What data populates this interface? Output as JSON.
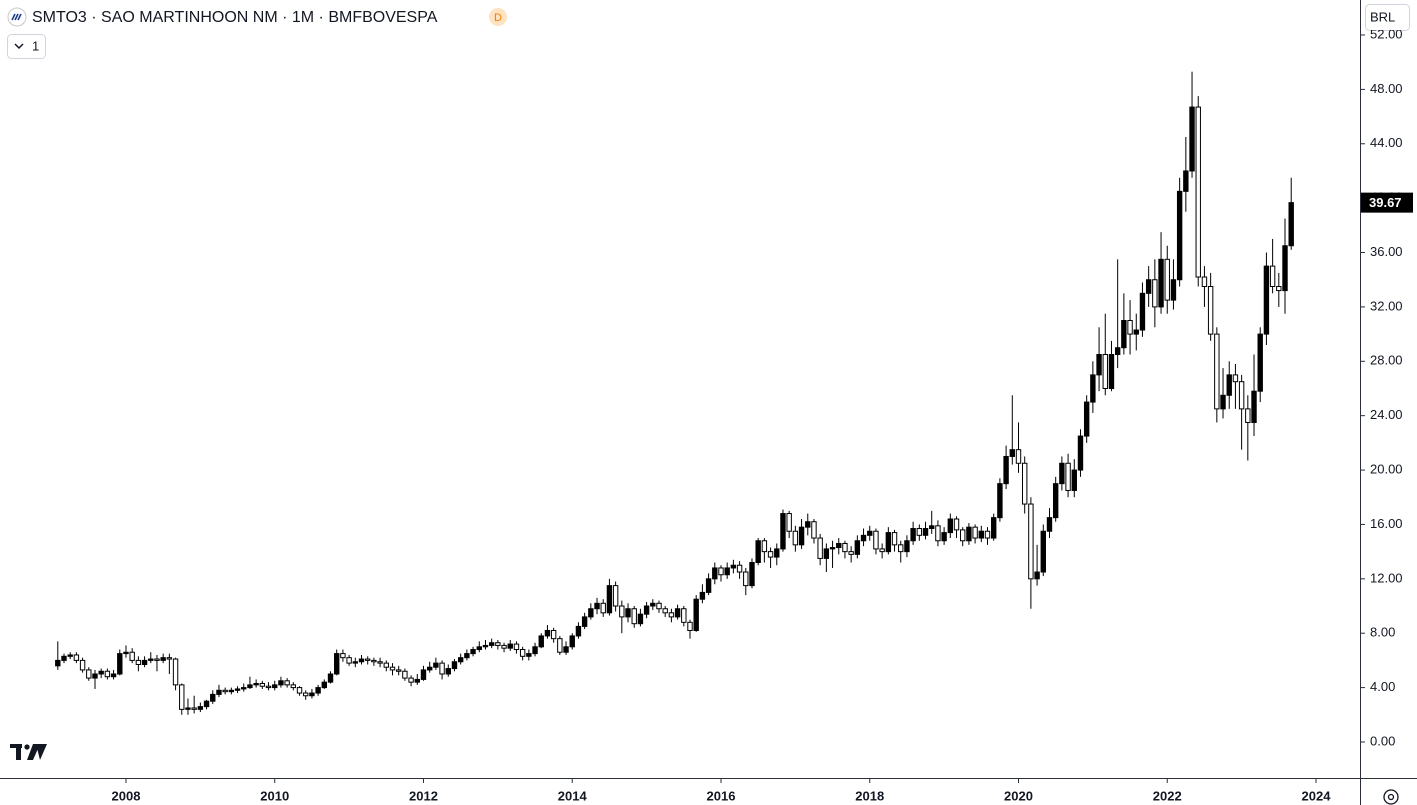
{
  "header": {
    "title": "SMTO3 · SAO MARTINHOON NM · 1M · BMFBOVESPA",
    "badge": "D",
    "interval_menu": "1",
    "currency": "BRL"
  },
  "chart_data": {
    "type": "candlestick",
    "categories": [
      null,
      null,
      null,
      null,
      null,
      null,
      null,
      null,
      null,
      null,
      null,
      "2008",
      null,
      null,
      null,
      null,
      null,
      null,
      null,
      null,
      null,
      null,
      null,
      null,
      null,
      null,
      null,
      null,
      null,
      null,
      null,
      null,
      null,
      null,
      null,
      "2010",
      null,
      null,
      null,
      null,
      null,
      null,
      null,
      null,
      null,
      null,
      null,
      null,
      null,
      null,
      null,
      null,
      null,
      null,
      null,
      null,
      null,
      null,
      null,
      "2012",
      null,
      null,
      null,
      null,
      null,
      null,
      null,
      null,
      null,
      null,
      null,
      null,
      null,
      null,
      null,
      null,
      null,
      null,
      null,
      null,
      null,
      null,
      null,
      "2014",
      null,
      null,
      null,
      null,
      null,
      null,
      null,
      null,
      null,
      null,
      null,
      null,
      null,
      null,
      null,
      null,
      null,
      null,
      null,
      null,
      null,
      null,
      null,
      "2016",
      null,
      null,
      null,
      null,
      null,
      null,
      null,
      null,
      null,
      null,
      null,
      null,
      null,
      null,
      null,
      null,
      null,
      null,
      null,
      null,
      null,
      null,
      null,
      "2018",
      null,
      null,
      null,
      null,
      null,
      null,
      null,
      null,
      null,
      null,
      null,
      null,
      null,
      null,
      null,
      null,
      null,
      null,
      null,
      null,
      null,
      null,
      null,
      "2020",
      null,
      null,
      null,
      null,
      null,
      null,
      null,
      null,
      null,
      null,
      null,
      null,
      null,
      null,
      null,
      null,
      null,
      null,
      null,
      null,
      null,
      null,
      null,
      "2022",
      null,
      null,
      null,
      null,
      null,
      null,
      null,
      null,
      null,
      null,
      null,
      null,
      null,
      null,
      null,
      null,
      null,
      null,
      null,
      null,
      null,
      null,
      null,
      "2024"
    ],
    "open": [
      5.6,
      6.0,
      6.3,
      6.4,
      6.0,
      5.3,
      4.7,
      5.0,
      5.2,
      4.8,
      5.0,
      6.5,
      6.6,
      6.0,
      5.7,
      6.0,
      6.1,
      6.0,
      6.2,
      6.1,
      4.2,
      2.4,
      2.5,
      2.4,
      2.6,
      3.0,
      3.5,
      3.8,
      3.7,
      3.8,
      3.9,
      4.0,
      4.2,
      4.3,
      4.1,
      4.0,
      4.2,
      4.5,
      4.2,
      4.0,
      3.6,
      3.4,
      3.6,
      4.0,
      4.4,
      5.0,
      6.5,
      6.2,
      5.8,
      5.9,
      6.1,
      6.0,
      5.9,
      5.8,
      5.5,
      5.3,
      5.2,
      4.7,
      4.4,
      4.6,
      5.3,
      5.5,
      5.8,
      5.0,
      5.4,
      5.9,
      6.2,
      6.5,
      6.8,
      7.0,
      7.1,
      7.3,
      7.1,
      6.9,
      7.2,
      6.8,
      6.3,
      6.5,
      7.0,
      7.8,
      8.2,
      7.6,
      6.6,
      7.0,
      7.8,
      8.5,
      9.2,
      9.8,
      10.2,
      9.5,
      11.5,
      10.0,
      9.2,
      9.8,
      8.7,
      9.4,
      10.0,
      10.2,
      9.8,
      9.5,
      9.2,
      9.8,
      8.8,
      8.2,
      10.5,
      11.0,
      12.0,
      12.8,
      12.3,
      12.8,
      13.0,
      12.5,
      11.5,
      13.2,
      14.8,
      14.0,
      13.6,
      14.2,
      16.8,
      15.5,
      14.5,
      15.8,
      16.2,
      15.0,
      13.5,
      14.2,
      14.3,
      14.6,
      14.0,
      13.8,
      14.8,
      15.2,
      15.5,
      14.2,
      14.0,
      15.4,
      14.5,
      14.0,
      14.8,
      15.7,
      15.2,
      15.7,
      15.9,
      14.8,
      15.4,
      16.4,
      15.6,
      14.8,
      15.8,
      15.0,
      15.5,
      15.0,
      16.5,
      19.0,
      21.0,
      21.5,
      20.5,
      17.5,
      12.0,
      12.5,
      15.5,
      16.5,
      19.0,
      20.5,
      18.5,
      20.0,
      22.5,
      25.0,
      27.0,
      28.5,
      26.0,
      28.5,
      29.0,
      31.0,
      30.0,
      30.3,
      33.0,
      34.0,
      32.0,
      35.5,
      32.5,
      34.0,
      40.5,
      42.0,
      46.7,
      34.2,
      33.5,
      30.0,
      24.5,
      25.5,
      27.0,
      26.5,
      24.5,
      23.5,
      25.8,
      30.0,
      35.0,
      33.5,
      33.2,
      36.5,
      null,
      null,
      null,
      null
    ],
    "high": [
      7.4,
      6.5,
      6.6,
      6.6,
      6.2,
      5.5,
      5.3,
      5.4,
      5.4,
      5.3,
      6.8,
      7.1,
      6.9,
      6.3,
      6.3,
      6.6,
      6.4,
      6.5,
      6.5,
      6.2,
      4.3,
      3.2,
      3.4,
      2.9,
      3.1,
      3.8,
      4.2,
      4.0,
      4.0,
      4.1,
      4.3,
      4.8,
      4.6,
      4.5,
      4.4,
      4.5,
      4.8,
      4.7,
      4.4,
      4.1,
      3.8,
      3.9,
      4.2,
      4.6,
      5.2,
      6.8,
      6.8,
      6.4,
      6.2,
      6.4,
      6.3,
      6.2,
      6.2,
      6.0,
      5.8,
      5.6,
      5.4,
      4.9,
      5.0,
      5.6,
      5.9,
      6.2,
      6.0,
      5.7,
      6.1,
      6.5,
      6.8,
      7.0,
      7.4,
      7.5,
      7.6,
      7.5,
      7.3,
      7.5,
      7.4,
      7.0,
      6.8,
      7.3,
      8.0,
      8.6,
      8.4,
      7.8,
      7.4,
      8.0,
      8.8,
      9.5,
      10.2,
      10.6,
      10.5,
      12.0,
      11.8,
      10.4,
      10.2,
      10.0,
      9.8,
      10.3,
      10.5,
      10.4,
      10.0,
      9.8,
      10.1,
      10.0,
      9.0,
      10.8,
      11.6,
      12.4,
      13.2,
      13.0,
      13.2,
      13.4,
      13.3,
      12.8,
      13.5,
      15.0,
      15.0,
      14.3,
      14.6,
      17.1,
      17.0,
      15.9,
      16.4,
      16.8,
      16.4,
      15.3,
      14.6,
      14.8,
      15.0,
      14.8,
      14.4,
      15.2,
      15.7,
      15.9,
      15.7,
      14.6,
      15.8,
      15.6,
      14.8,
      15.2,
      16.2,
      16.0,
      16.2,
      17.0,
      16.3,
      15.8,
      16.8,
      16.6,
      15.8,
      16.1,
      16.0,
      15.9,
      15.8,
      16.8,
      19.4,
      21.8,
      25.5,
      23.5,
      21.0,
      18.0,
      14.5,
      16.0,
      17.2,
      19.5,
      21.0,
      21.2,
      20.8,
      23.0,
      25.5,
      28.0,
      30.5,
      31.5,
      29.5,
      35.5,
      33.0,
      32.5,
      31.5,
      33.8,
      35.0,
      35.5,
      37.5,
      36.5,
      35.5,
      41.5,
      44.5,
      49.3,
      47.5,
      35.0,
      34.5,
      30.5,
      27.5,
      28.0,
      27.8,
      27.0,
      25.5,
      28.5,
      30.5,
      36.0,
      37.0,
      34.5,
      38.5,
      41.5,
      null,
      null,
      null,
      null
    ],
    "low": [
      5.3,
      5.8,
      6.1,
      5.8,
      5.1,
      4.5,
      3.9,
      4.7,
      4.6,
      4.6,
      4.9,
      6.2,
      5.8,
      5.2,
      5.5,
      5.8,
      5.2,
      5.8,
      5.0,
      3.8,
      2.0,
      2.0,
      2.1,
      2.2,
      2.4,
      2.8,
      3.3,
      3.5,
      3.5,
      3.6,
      3.7,
      3.9,
      4.0,
      3.9,
      3.8,
      3.8,
      4.0,
      4.0,
      3.8,
      3.4,
      3.1,
      3.2,
      3.4,
      3.9,
      4.3,
      4.9,
      5.9,
      5.6,
      5.5,
      5.7,
      5.7,
      5.6,
      5.5,
      5.2,
      4.9,
      4.9,
      4.5,
      4.1,
      4.2,
      4.5,
      5.1,
      5.3,
      4.6,
      4.8,
      5.2,
      5.7,
      6.0,
      6.3,
      6.6,
      6.8,
      6.9,
      6.8,
      6.6,
      6.7,
      6.5,
      6.0,
      6.0,
      6.3,
      6.9,
      7.6,
      7.3,
      6.4,
      6.4,
      6.8,
      7.6,
      8.3,
      9.0,
      9.4,
      9.2,
      9.3,
      9.6,
      8.0,
      8.8,
      8.4,
      8.5,
      9.1,
      9.7,
      9.5,
      9.2,
      8.8,
      9.0,
      8.5,
      7.6,
      8.1,
      10.2,
      10.8,
      11.6,
      11.8,
      12.0,
      12.4,
      12.0,
      10.8,
      11.3,
      13.0,
      13.2,
      12.8,
      13.0,
      14.0,
      15.0,
      14.0,
      14.2,
      15.2,
      14.6,
      13.0,
      12.5,
      12.8,
      13.8,
      13.5,
      13.2,
      13.5,
      14.4,
      14.8,
      13.8,
      13.5,
      13.8,
      14.0,
      13.2,
      13.6,
      14.5,
      14.8,
      14.9,
      15.3,
      14.4,
      14.5,
      15.0,
      15.0,
      14.4,
      14.5,
      14.6,
      14.7,
      14.5,
      14.8,
      16.2,
      18.6,
      20.4,
      19.8,
      16.8,
      9.8,
      11.5,
      12.2,
      15.0,
      16.2,
      18.5,
      18.0,
      18.0,
      19.5,
      22.0,
      24.2,
      25.8,
      25.5,
      25.8,
      27.5,
      28.5,
      28.5,
      28.8,
      29.8,
      32.0,
      30.5,
      31.5,
      31.5,
      31.8,
      33.5,
      39.0,
      41.5,
      33.5,
      32.0,
      29.5,
      23.5,
      23.8,
      24.5,
      24.5,
      21.5,
      20.7,
      22.5,
      25.0,
      29.2,
      33.0,
      32.0,
      31.5,
      36.2,
      null,
      null,
      null,
      null
    ],
    "close": [
      6.0,
      6.3,
      6.4,
      6.0,
      5.3,
      4.7,
      5.0,
      5.2,
      4.8,
      5.0,
      6.5,
      6.6,
      6.0,
      5.7,
      6.0,
      6.1,
      6.0,
      6.2,
      6.1,
      4.2,
      2.4,
      2.5,
      2.4,
      2.6,
      3.0,
      3.5,
      3.8,
      3.7,
      3.8,
      3.9,
      4.0,
      4.2,
      4.3,
      4.1,
      4.0,
      4.2,
      4.5,
      4.2,
      4.0,
      3.6,
      3.4,
      3.6,
      4.0,
      4.4,
      5.0,
      6.5,
      6.2,
      5.8,
      5.9,
      6.1,
      6.0,
      5.9,
      5.8,
      5.5,
      5.3,
      5.2,
      4.7,
      4.4,
      4.6,
      5.3,
      5.5,
      5.8,
      5.0,
      5.4,
      5.9,
      6.2,
      6.5,
      6.8,
      7.0,
      7.1,
      7.3,
      7.1,
      6.9,
      7.2,
      6.8,
      6.3,
      6.5,
      7.0,
      7.8,
      8.2,
      7.6,
      6.6,
      7.0,
      7.8,
      8.5,
      9.2,
      9.8,
      10.2,
      9.5,
      11.5,
      10.0,
      9.2,
      9.8,
      8.7,
      9.4,
      10.0,
      10.2,
      9.8,
      9.5,
      9.2,
      9.8,
      8.8,
      8.2,
      10.5,
      11.0,
      12.0,
      12.8,
      12.3,
      12.8,
      13.0,
      12.5,
      11.5,
      13.2,
      14.8,
      14.0,
      13.6,
      14.2,
      16.8,
      15.5,
      14.5,
      15.8,
      16.2,
      15.0,
      13.5,
      14.2,
      14.3,
      14.6,
      14.0,
      13.8,
      14.8,
      15.2,
      15.5,
      14.2,
      14.0,
      15.4,
      14.5,
      14.0,
      14.8,
      15.7,
      15.2,
      15.7,
      15.9,
      14.8,
      15.4,
      16.4,
      15.6,
      14.8,
      15.8,
      15.0,
      15.5,
      15.0,
      16.5,
      19.0,
      21.0,
      21.5,
      20.5,
      17.5,
      12.0,
      12.5,
      15.5,
      16.5,
      19.0,
      20.5,
      18.5,
      20.0,
      22.5,
      25.0,
      27.0,
      28.5,
      26.0,
      28.5,
      29.0,
      31.0,
      30.0,
      30.3,
      33.0,
      34.0,
      32.0,
      35.5,
      32.5,
      34.0,
      40.5,
      42.0,
      46.7,
      34.2,
      33.5,
      30.0,
      24.5,
      25.5,
      27.0,
      26.5,
      24.5,
      23.5,
      25.8,
      30.0,
      35.0,
      33.5,
      33.2,
      36.5,
      39.67,
      null,
      null,
      null,
      null
    ],
    "up_color": "#000000",
    "down_color": "#ffffff",
    "border_color": "#000000",
    "last_value_label": "39.67",
    "ylim": [
      -2.65,
      52
    ],
    "yticks": [
      {
        "value": 0,
        "label": "0.00"
      },
      {
        "value": 4,
        "label": "4.00"
      },
      {
        "value": 8,
        "label": "8.00"
      },
      {
        "value": 12,
        "label": "12.00"
      },
      {
        "value": 16,
        "label": "16.00"
      },
      {
        "value": 20,
        "label": "20.00"
      },
      {
        "value": 24,
        "label": "24.00"
      },
      {
        "value": 28,
        "label": "28.00"
      },
      {
        "value": 32,
        "label": "32.00"
      },
      {
        "value": 36,
        "label": "36.00"
      },
      {
        "value": 40,
        "label": "40.00"
      },
      {
        "value": 44,
        "label": "44.00"
      },
      {
        "value": 48,
        "label": "48.00"
      },
      {
        "value": 52,
        "label": "52.00"
      }
    ]
  }
}
